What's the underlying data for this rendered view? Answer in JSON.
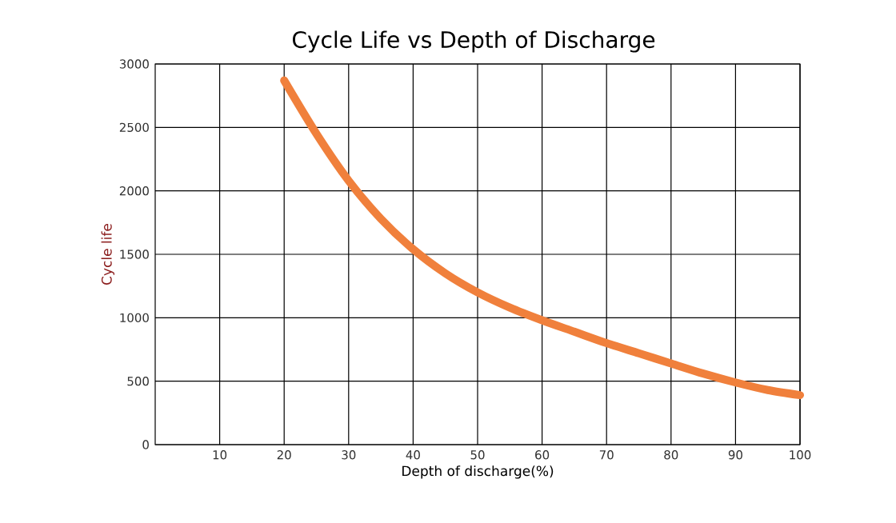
{
  "chart_data": {
    "type": "line",
    "title": "Cycle Life vs Depth of Discharge",
    "xlabel": "Depth of discharge(%)",
    "ylabel": "Cycle life",
    "x": [
      20,
      25,
      30,
      35,
      40,
      45,
      50,
      55,
      60,
      65,
      70,
      75,
      80,
      85,
      90,
      95,
      100
    ],
    "series": [
      {
        "color": "#f0803c",
        "values": [
          2870,
          2450,
          2080,
          1780,
          1540,
          1350,
          1200,
          1080,
          980,
          890,
          800,
          720,
          640,
          560,
          490,
          430,
          390
        ]
      }
    ],
    "xlim": [
      0,
      100
    ],
    "xticks": [
      10,
      20,
      30,
      40,
      50,
      60,
      70,
      80,
      90,
      100
    ],
    "ylim": [
      0,
      3000
    ],
    "yticks": [
      0,
      500,
      1000,
      1500,
      2000,
      2500,
      3000
    ],
    "grid": true,
    "marker": "none",
    "line_style": "solid"
  }
}
